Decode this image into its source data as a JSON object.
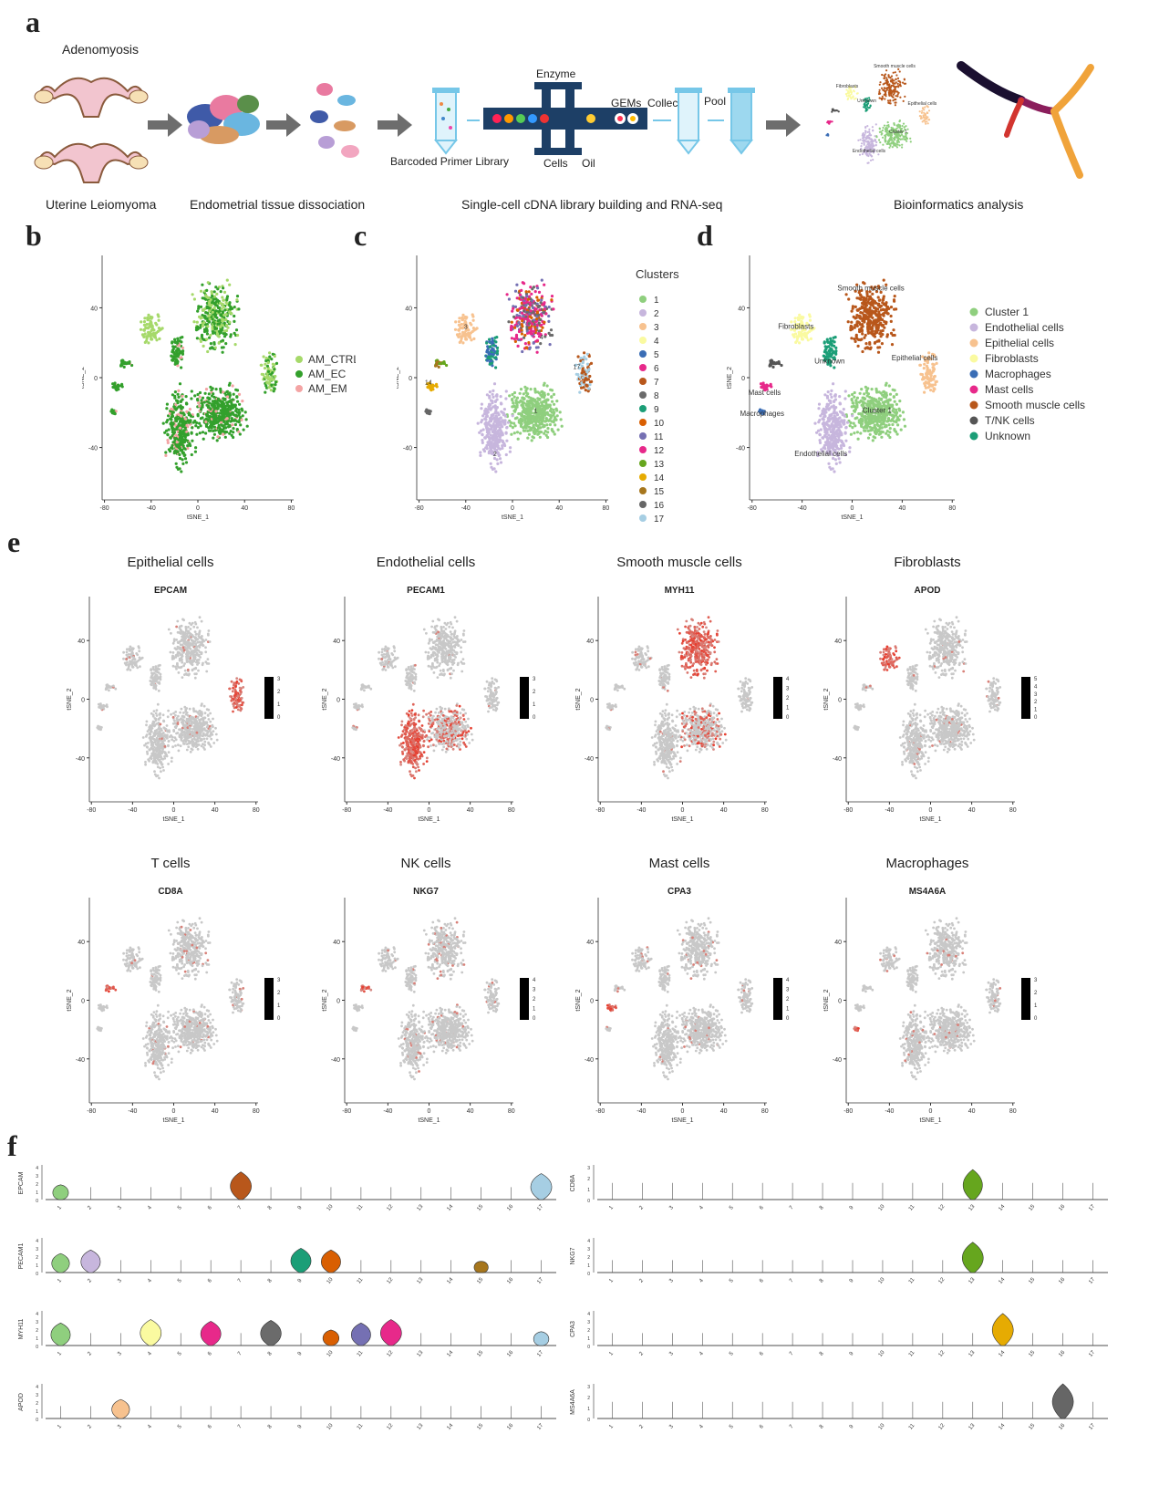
{
  "panel_labels": {
    "a": "a",
    "b": "b",
    "c": "c",
    "d": "d",
    "e": "e",
    "f": "f"
  },
  "workflow": {
    "adenomyosis": "Adenomyosis",
    "leiomyoma": "Uterine Leiomyoma",
    "dissociation": "Endometrial tissue dissociation",
    "enzyme": "Enzyme",
    "gems": "GEMs",
    "collect": "Collect",
    "pool": "Pool",
    "barcoded": "Barcoded Primer Library",
    "cells": "Cells",
    "oil": "Oil",
    "library": "Single-cell cDNA library building and RNA-seq",
    "bioinformatics": "Bioinformatics analysis",
    "mini_labels": [
      "Fibroblasts",
      "Smooth muscle cells",
      "Unknown",
      "Epithelial cells",
      "Cluster 1",
      "Endothelial cells"
    ],
    "colors": {
      "arrow": "#6d6d6d",
      "chip": "#1d3f66",
      "tube": "#76c7e8",
      "uterus": "#e8a9b8"
    }
  },
  "chart_data": [
    {
      "id": "b",
      "type": "scatter",
      "xlabel": "tSNE_1",
      "ylabel": "tSNE_2",
      "xticks": [
        -80,
        -40,
        0,
        40,
        80
      ],
      "yticks": [
        40,
        0,
        -40
      ],
      "xlim": [
        -80,
        80
      ],
      "ylim": [
        -70,
        70
      ],
      "legend": [
        {
          "name": "AM_CTRL",
          "color": "#a6d96a"
        },
        {
          "name": "AM_EC",
          "color": "#33a02c"
        },
        {
          "name": "AM_EM",
          "color": "#f4a4a4"
        }
      ]
    },
    {
      "id": "c",
      "type": "scatter",
      "xlabel": "tSNE_1",
      "ylabel": "tSNE_2",
      "xticks": [
        -80,
        -40,
        0,
        40,
        80
      ],
      "yticks": [
        40,
        0,
        -40
      ],
      "legend_title": "Clusters",
      "legend": [
        {
          "name": "1",
          "color": "#8fcf7e"
        },
        {
          "name": "2",
          "color": "#c7b6dd"
        },
        {
          "name": "3",
          "color": "#f7c28f"
        },
        {
          "name": "4",
          "color": "#fafaa0"
        },
        {
          "name": "5",
          "color": "#3a6db5"
        },
        {
          "name": "6",
          "color": "#e7298a"
        },
        {
          "name": "7",
          "color": "#b8571b"
        },
        {
          "name": "8",
          "color": "#6b6b6b"
        },
        {
          "name": "9",
          "color": "#1b9e77"
        },
        {
          "name": "10",
          "color": "#d95f02"
        },
        {
          "name": "11",
          "color": "#7570b3"
        },
        {
          "name": "12",
          "color": "#e7298a"
        },
        {
          "name": "13",
          "color": "#66a61e"
        },
        {
          "name": "14",
          "color": "#e6ab02"
        },
        {
          "name": "15",
          "color": "#a6761d"
        },
        {
          "name": "16",
          "color": "#666666"
        },
        {
          "name": "17",
          "color": "#a6cee3"
        }
      ],
      "cluster_text": [
        "1",
        "2",
        "3",
        "4",
        "17",
        "14"
      ]
    },
    {
      "id": "d",
      "type": "scatter",
      "xlabel": "tSNE_1",
      "ylabel": "tSNE_2",
      "xticks": [
        -80,
        -40,
        0,
        40,
        80
      ],
      "yticks": [
        40,
        0,
        -40
      ],
      "legend": [
        {
          "name": "Cluster 1",
          "color": "#8fcf7e"
        },
        {
          "name": "Endothelial cells",
          "color": "#c7b6dd"
        },
        {
          "name": "Epithelial cells",
          "color": "#f7c28f"
        },
        {
          "name": "Fibroblasts",
          "color": "#fafaa0"
        },
        {
          "name": "Macrophages",
          "color": "#3a6db5"
        },
        {
          "name": "Mast cells",
          "color": "#e7298a"
        },
        {
          "name": "Smooth muscle cells",
          "color": "#b8571b"
        },
        {
          "name": "T/NK cells",
          "color": "#555555"
        },
        {
          "name": "Unknown",
          "color": "#1b9e77"
        }
      ],
      "cluster_text": [
        "Smooth muscle cells",
        "Fibroblasts",
        "Unknown",
        "Epithelial cells",
        "Mast cells",
        "Cluster 1",
        "Endothelial cells",
        "Macrophages"
      ]
    },
    {
      "id": "e",
      "type": "scatter",
      "note_group": "feature plots",
      "xlabel": "tSNE_1",
      "ylabel": "tSNE_2",
      "xticks": [
        -80,
        -40,
        0,
        40,
        80
      ],
      "yticks": [
        40,
        0,
        -40
      ],
      "low_color": "#c8c8c8",
      "high_color": "#e8392a",
      "plots": [
        {
          "title": "Epithelial cells",
          "gene": "EPCAM",
          "scale": [
            "3",
            "2",
            "1",
            "0"
          ],
          "hot": "epithelial"
        },
        {
          "title": "Endothelial cells",
          "gene": "PECAM1",
          "scale": [
            "3",
            "2",
            "1",
            "0"
          ],
          "hot": "endothelial"
        },
        {
          "title": "Smooth muscle cells",
          "gene": "MYH11",
          "scale": [
            "4",
            "3",
            "2",
            "1",
            "0"
          ],
          "hot": "smooth"
        },
        {
          "title": "Fibroblasts",
          "gene": "APOD",
          "scale": [
            "5",
            "4",
            "3",
            "2",
            "1",
            "0"
          ],
          "hot": "fibro"
        },
        {
          "title": "T cells",
          "gene": "CD8A",
          "scale": [
            "3",
            "2",
            "1",
            "0"
          ],
          "hot": "tnk"
        },
        {
          "title": "NK cells",
          "gene": "NKG7",
          "scale": [
            "4",
            "3",
            "2",
            "1",
            "0"
          ],
          "hot": "tnk"
        },
        {
          "title": "Mast cells",
          "gene": "CPA3",
          "scale": [
            "4",
            "3",
            "2",
            "1",
            "0"
          ],
          "hot": "mast"
        },
        {
          "title": "Macrophages",
          "gene": "MS4A6A",
          "scale": [
            "3",
            "2",
            "1",
            "0"
          ],
          "hot": "macro"
        }
      ]
    },
    {
      "id": "f",
      "type": "violin",
      "categories": [
        "1",
        "2",
        "3",
        "4",
        "5",
        "6",
        "7",
        "8",
        "9",
        "10",
        "11",
        "12",
        "13",
        "14",
        "15",
        "16",
        "17"
      ],
      "series": [
        {
          "name": "EPCAM",
          "yticks": [
            "4",
            "3",
            "2",
            "1",
            "0"
          ],
          "ymax": 4,
          "values": [
            1.7,
            0,
            0,
            0,
            0,
            0,
            3.2,
            0,
            0,
            0,
            0,
            0,
            0,
            0,
            0,
            0,
            3.0
          ]
        },
        {
          "name": "PECAM1",
          "yticks": [
            "4",
            "3",
            "2",
            "1",
            "0"
          ],
          "ymax": 4,
          "values": [
            2.2,
            2.6,
            0,
            0,
            0,
            0,
            0,
            0,
            2.8,
            2.6,
            0,
            0,
            0,
            0,
            1.3,
            0,
            0
          ]
        },
        {
          "name": "MYH11",
          "yticks": [
            "4",
            "3",
            "2",
            "1",
            "0"
          ],
          "ymax": 4,
          "values": [
            2.6,
            0,
            0,
            3.0,
            0,
            2.8,
            0,
            2.9,
            0,
            1.8,
            2.6,
            3.0,
            0,
            0,
            0,
            0,
            1.6
          ]
        },
        {
          "name": "APOD",
          "yticks": [
            "4",
            "3",
            "2",
            "1",
            "0"
          ],
          "ymax": 4,
          "values": [
            0,
            0,
            2.2,
            0,
            0,
            0,
            0,
            0,
            0,
            0,
            0,
            0,
            0,
            0,
            0,
            0,
            0
          ]
        },
        {
          "name": "CD8A",
          "yticks": [
            "3",
            "2",
            "1",
            "0"
          ],
          "ymax": 3,
          "values": [
            0,
            0,
            0,
            0,
            0,
            0,
            0,
            0,
            0,
            0,
            0,
            0,
            2.6,
            0,
            0,
            0,
            0
          ]
        },
        {
          "name": "NKG7",
          "yticks": [
            "4",
            "3",
            "2",
            "1",
            "0"
          ],
          "ymax": 4,
          "values": [
            0,
            0,
            0,
            0,
            0,
            0,
            0,
            0,
            0,
            0,
            0,
            0,
            3.5,
            0,
            0,
            0,
            0
          ]
        },
        {
          "name": "CPA3",
          "yticks": [
            "4",
            "3",
            "2",
            "1",
            "0"
          ],
          "ymax": 4,
          "values": [
            0,
            0,
            0,
            0,
            0,
            0,
            0,
            0,
            0,
            0,
            0,
            0,
            0,
            3.7,
            0,
            0,
            0
          ]
        },
        {
          "name": "MS4A6A",
          "yticks": [
            "3",
            "2",
            "1",
            "0"
          ],
          "ymax": 3,
          "values": [
            0,
            0,
            0,
            0,
            0,
            0,
            0,
            0,
            0,
            0,
            0,
            0,
            0,
            0,
            0,
            3.0,
            0
          ]
        }
      ]
    }
  ]
}
